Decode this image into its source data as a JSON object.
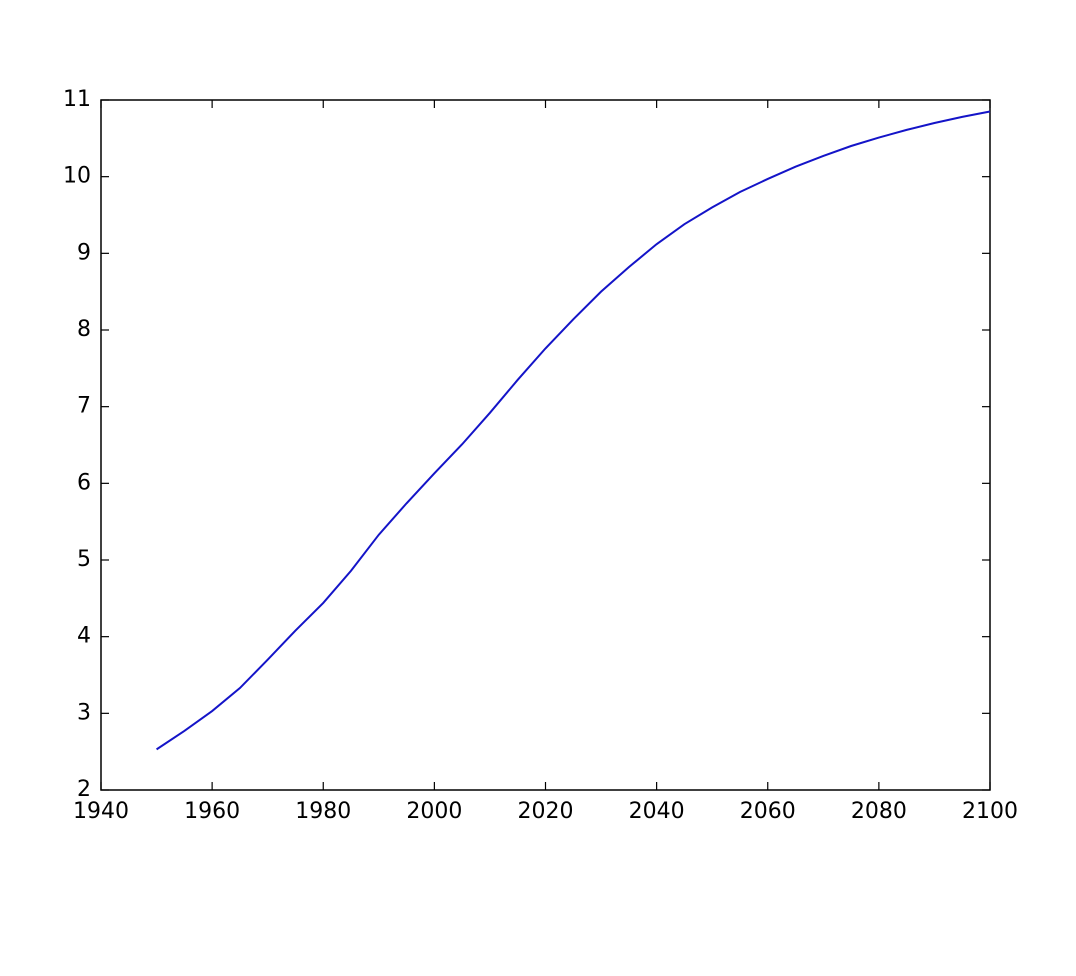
{
  "chart_data": {
    "type": "line",
    "x": [
      1950,
      1955,
      1960,
      1965,
      1970,
      1975,
      1980,
      1985,
      1990,
      1995,
      2000,
      2005,
      2010,
      2015,
      2020,
      2025,
      2030,
      2035,
      2040,
      2045,
      2050,
      2055,
      2060,
      2065,
      2070,
      2075,
      2080,
      2085,
      2090,
      2095,
      2100
    ],
    "series": [
      {
        "color": "#1414c8",
        "values": [
          2.53,
          2.77,
          3.03,
          3.33,
          3.7,
          4.08,
          4.44,
          4.86,
          5.33,
          5.74,
          6.13,
          6.51,
          6.92,
          7.35,
          7.76,
          8.14,
          8.5,
          8.82,
          9.12,
          9.38,
          9.6,
          9.8,
          9.97,
          10.13,
          10.27,
          10.4,
          10.51,
          10.61,
          10.7,
          10.78,
          10.85
        ]
      }
    ],
    "xlim": [
      1940,
      2100
    ],
    "xticks": [
      1940,
      1960,
      1980,
      2000,
      2020,
      2040,
      2060,
      2080,
      2100
    ],
    "ylim": [
      2,
      11
    ],
    "yticks": [
      2,
      3,
      4,
      5,
      6,
      7,
      8,
      9,
      10,
      11
    ]
  }
}
